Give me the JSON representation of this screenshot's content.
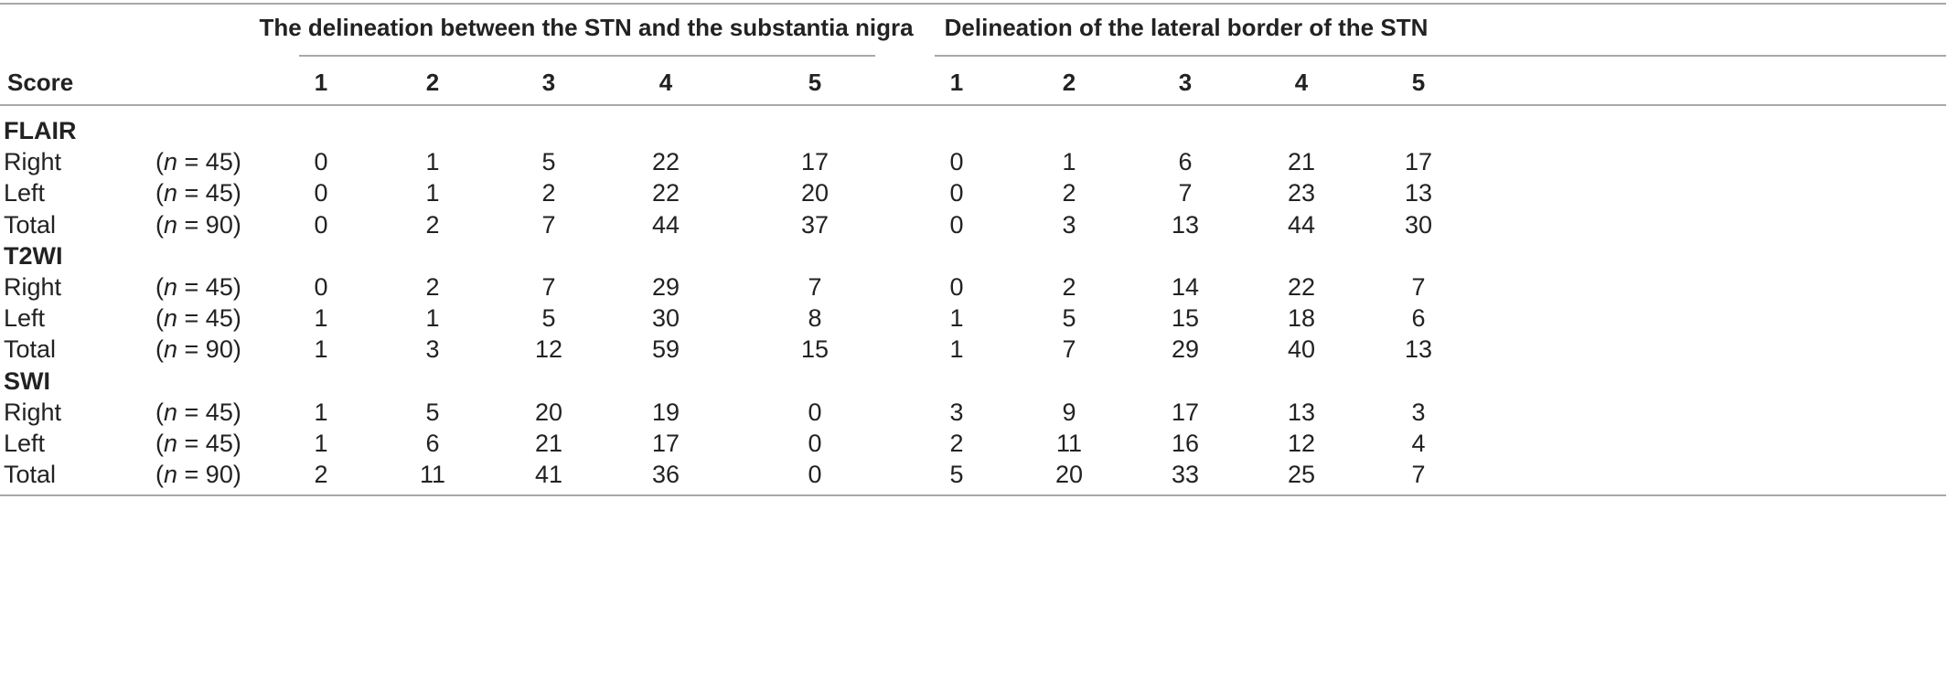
{
  "header": {
    "group1_title": "The delineation between the STN and the substantia nigra",
    "group2_title": "Delineation of the lateral border of the STN",
    "score_label": "Score",
    "scores": [
      "1",
      "2",
      "3",
      "4",
      "5"
    ]
  },
  "sections": [
    {
      "name": "FLAIR",
      "rows": [
        {
          "label": "Right",
          "n_prefix": "(",
          "n_var": "n",
          "n_value": " = 45)",
          "g1": [
            "0",
            "1",
            "5",
            "22",
            "17"
          ],
          "g2": [
            "0",
            "1",
            "6",
            "21",
            "17"
          ]
        },
        {
          "label": "Left",
          "n_prefix": "(",
          "n_var": "n",
          "n_value": " = 45)",
          "g1": [
            "0",
            "1",
            "2",
            "22",
            "20"
          ],
          "g2": [
            "0",
            "2",
            "7",
            "23",
            "13"
          ]
        },
        {
          "label": "Total",
          "n_prefix": "(",
          "n_var": "n",
          "n_value": " = 90)",
          "g1": [
            "0",
            "2",
            "7",
            "44",
            "37"
          ],
          "g2": [
            "0",
            "3",
            "13",
            "44",
            "30"
          ]
        }
      ]
    },
    {
      "name": "T2WI",
      "rows": [
        {
          "label": "Right",
          "n_prefix": "(",
          "n_var": "n",
          "n_value": " = 45)",
          "g1": [
            "0",
            "2",
            "7",
            "29",
            "7"
          ],
          "g2": [
            "0",
            "2",
            "14",
            "22",
            "7"
          ]
        },
        {
          "label": "Left",
          "n_prefix": "(",
          "n_var": "n",
          "n_value": " = 45)",
          "g1": [
            "1",
            "1",
            "5",
            "30",
            "8"
          ],
          "g2": [
            "1",
            "5",
            "15",
            "18",
            "6"
          ]
        },
        {
          "label": "Total",
          "n_prefix": "(",
          "n_var": "n",
          "n_value": " = 90)",
          "g1": [
            "1",
            "3",
            "12",
            "59",
            "15"
          ],
          "g2": [
            "1",
            "7",
            "29",
            "40",
            "13"
          ]
        }
      ]
    },
    {
      "name": "SWI",
      "rows": [
        {
          "label": "Right",
          "n_prefix": "(",
          "n_var": "n",
          "n_value": " = 45)",
          "g1": [
            "1",
            "5",
            "20",
            "19",
            "0"
          ],
          "g2": [
            "3",
            "9",
            "17",
            "13",
            "3"
          ]
        },
        {
          "label": "Left",
          "n_prefix": "(",
          "n_var": "n",
          "n_value": " = 45)",
          "g1": [
            "1",
            "6",
            "21",
            "17",
            "0"
          ],
          "g2": [
            "2",
            "11",
            "16",
            "12",
            "4"
          ]
        },
        {
          "label": "Total",
          "n_prefix": "(",
          "n_var": "n",
          "n_value": " = 90)",
          "g1": [
            "2",
            "11",
            "41",
            "36",
            "0"
          ],
          "g2": [
            "5",
            "20",
            "33",
            "25",
            "7"
          ]
        }
      ]
    }
  ]
}
